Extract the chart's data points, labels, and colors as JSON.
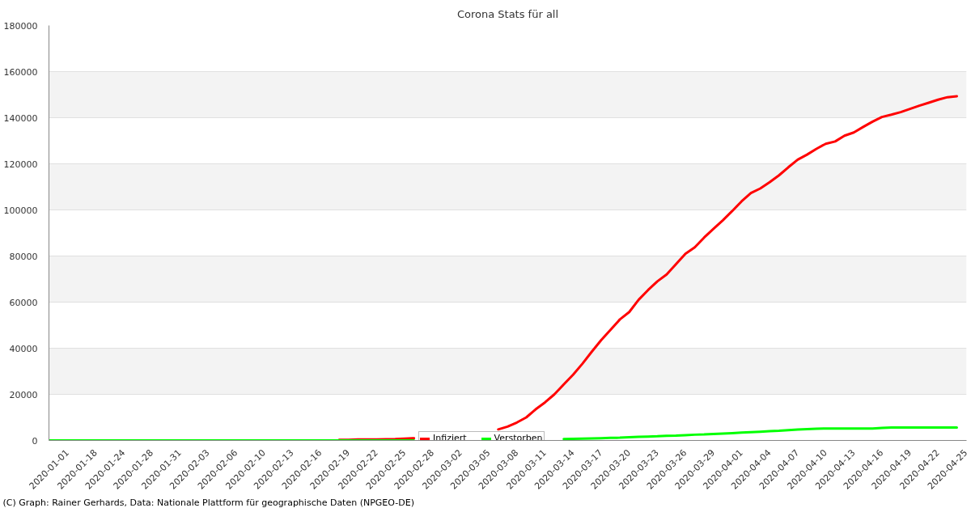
{
  "chart_data": {
    "type": "line",
    "title": "Corona Stats für all",
    "annotations": [
      "(C) Graph: Rainer Gerhards, Data: Nationale Plattform für geographische Daten (NPGEO-DE)"
    ],
    "categories": [
      "2020-01-01",
      null,
      null,
      "2020-01-18",
      null,
      null,
      "2020-01-24",
      null,
      null,
      "2020-01-28",
      null,
      null,
      "2020-01-31",
      null,
      null,
      "2020-02-03",
      null,
      null,
      "2020-02-06",
      null,
      null,
      "2020-02-10",
      null,
      null,
      "2020-02-13",
      null,
      null,
      "2020-02-16",
      null,
      null,
      "2020-02-19",
      null,
      null,
      "2020-02-22",
      null,
      null,
      "2020-02-25",
      null,
      null,
      "2020-02-28",
      null,
      null,
      "2020-03-02",
      null,
      null,
      "2020-03-05",
      null,
      null,
      "2020-03-08",
      null,
      null,
      "2020-03-11",
      null,
      null,
      "2020-03-14",
      null,
      null,
      "2020-03-17",
      null,
      null,
      "2020-03-20",
      null,
      null,
      "2020-03-23",
      null,
      null,
      "2020-03-26",
      null,
      null,
      "2020-03-29",
      null,
      null,
      "2020-04-01",
      null,
      null,
      "2020-04-04",
      null,
      null,
      "2020-04-07",
      null,
      null,
      "2020-04-10",
      null,
      null,
      "2020-04-13",
      null,
      null,
      "2020-04-16",
      null,
      null,
      "2020-04-19",
      null,
      null,
      "2020-04-22",
      null,
      null,
      "2020-04-25",
      null
    ],
    "series": [
      {
        "name": "Infiziert",
        "color": "#ff0000",
        "values": [
          null,
          null,
          null,
          null,
          null,
          null,
          null,
          null,
          null,
          null,
          null,
          null,
          null,
          null,
          null,
          null,
          null,
          null,
          null,
          null,
          null,
          null,
          null,
          null,
          null,
          null,
          null,
          null,
          null,
          null,
          null,
          300,
          300,
          400,
          400,
          400,
          500,
          600,
          800,
          1000,
          null,
          null,
          null,
          null,
          null,
          null,
          null,
          null,
          4800,
          6000,
          7800,
          10000,
          13500,
          16500,
          20000,
          24300,
          28500,
          33300,
          38500,
          43500,
          48000,
          52500,
          55700,
          61000,
          65200,
          69000,
          72000,
          76500,
          81000,
          83800,
          88000,
          91800,
          95500,
          99500,
          103700,
          107300,
          109300,
          112000,
          115000,
          118500,
          121800,
          124000,
          126500,
          128700,
          129700,
          132200,
          133600,
          136000,
          138300,
          140300,
          141300,
          142400,
          143800,
          145200,
          146500,
          147800,
          148900,
          149300
        ]
      },
      {
        "name": "Verstorben",
        "color": "#00ff00",
        "values": [
          0,
          0,
          0,
          0,
          0,
          0,
          0,
          0,
          0,
          0,
          0,
          0,
          0,
          0,
          0,
          0,
          0,
          0,
          0,
          0,
          0,
          0,
          0,
          0,
          0,
          0,
          0,
          0,
          0,
          0,
          0,
          0,
          0,
          0,
          0,
          0,
          0,
          0,
          0,
          0,
          null,
          null,
          null,
          null,
          null,
          null,
          null,
          null,
          null,
          null,
          null,
          null,
          null,
          null,
          null,
          600,
          700,
          800,
          900,
          1000,
          1100,
          1200,
          1400,
          1600,
          1700,
          1800,
          2000,
          2100,
          2300,
          2500,
          2600,
          2800,
          3000,
          3200,
          3400,
          3600,
          3800,
          4000,
          4200,
          4500,
          4700,
          4900,
          5100,
          5200,
          5200,
          5200,
          5200,
          5200,
          5200,
          5400,
          5600,
          5600,
          5600,
          5600,
          5600,
          5600,
          5600,
          5600
        ]
      }
    ],
    "ylim": [
      0,
      180000
    ],
    "yticks": [
      0,
      20000,
      40000,
      60000,
      80000,
      100000,
      120000,
      140000,
      160000,
      180000
    ],
    "bands": [
      {
        "axis": "y",
        "from": 20000,
        "to": 40000,
        "color": "#f3f3f3"
      },
      {
        "axis": "y",
        "from": 60000,
        "to": 80000,
        "color": "#f3f3f3"
      },
      {
        "axis": "y",
        "from": 100000,
        "to": 120000,
        "color": "#f3f3f3"
      },
      {
        "axis": "y",
        "from": 140000,
        "to": 160000,
        "color": "#f3f3f3"
      }
    ],
    "grid": "y",
    "legend": "bottom"
  }
}
